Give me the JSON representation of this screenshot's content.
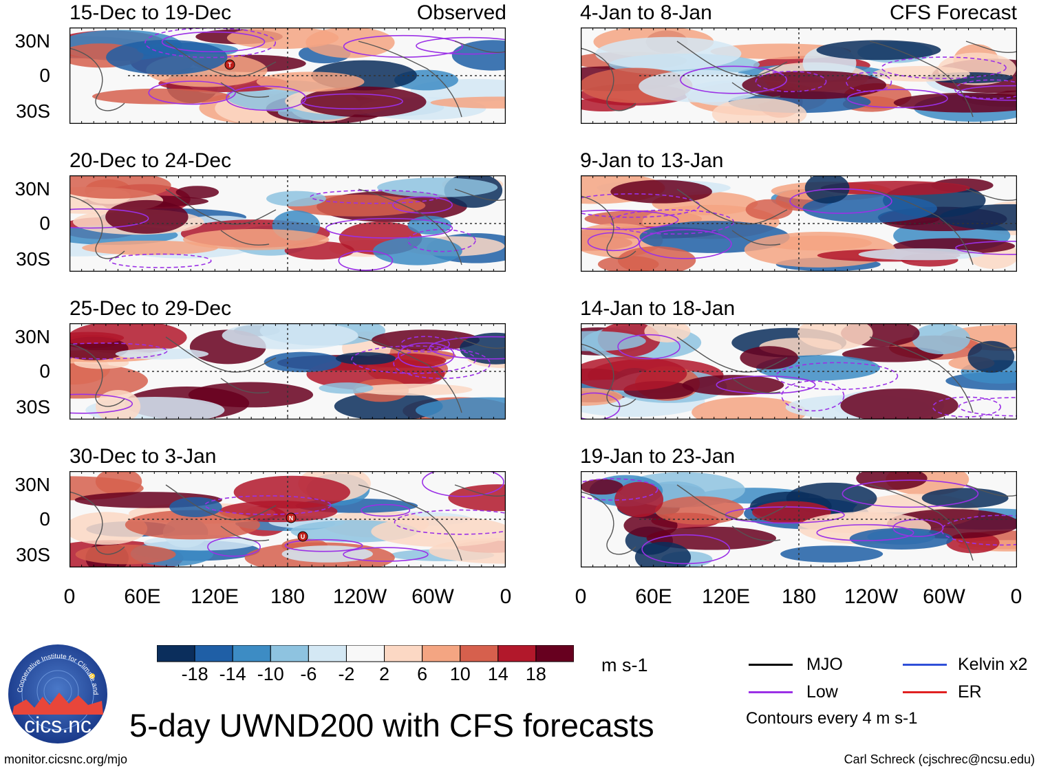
{
  "left_header_tag": "Observed",
  "right_header_tag": "CFS Forecast",
  "panels": [
    {
      "period": "15-Dec to 19-Dec",
      "column": "left",
      "markers": [
        {
          "label": "T"
        }
      ]
    },
    {
      "period": "20-Dec to 24-Dec",
      "column": "left",
      "markers": []
    },
    {
      "period": "25-Dec to 29-Dec",
      "column": "left",
      "markers": []
    },
    {
      "period": "30-Dec to 3-Jan",
      "column": "left",
      "markers": [
        {
          "label": "N"
        },
        {
          "label": "U"
        }
      ]
    },
    {
      "period": "4-Jan to 8-Jan",
      "column": "right",
      "markers": []
    },
    {
      "period": "9-Jan to 13-Jan",
      "column": "right",
      "markers": []
    },
    {
      "period": "14-Jan to 18-Jan",
      "column": "right",
      "markers": []
    },
    {
      "period": "19-Jan to 23-Jan",
      "column": "right",
      "markers": []
    }
  ],
  "y_ticks": [
    "30N",
    "0",
    "30S"
  ],
  "x_ticks": [
    "0",
    "60E",
    "120E",
    "180",
    "120W",
    "60W",
    "0"
  ],
  "colorbar": {
    "labels": [
      "-18",
      "-14",
      "-10",
      "-6",
      "-2",
      "2",
      "6",
      "10",
      "14",
      "18"
    ],
    "units": "m s-1",
    "colors": [
      "#0b2e5c",
      "#1f5fa6",
      "#3d8cc4",
      "#8ec3e0",
      "#d4e8f4",
      "#f8f8f8",
      "#fcd8c4",
      "#f4a582",
      "#d6604d",
      "#b2182b",
      "#67001f"
    ]
  },
  "legend": {
    "items": [
      {
        "label": "MJO",
        "color": "#000000"
      },
      {
        "label": "Kelvin x2",
        "color": "#2f4fd8"
      },
      {
        "label": "Low",
        "color": "#9b30e6"
      },
      {
        "label": "ER",
        "color": "#e02020"
      }
    ],
    "note": "Contours every 4 m s-1"
  },
  "main_title": "5-day UWND200 with CFS forecasts",
  "logo_text": "cics.nc",
  "logo_ring_text": "Cooperative Institute for Climate and Satellites",
  "footer_left": "monitor.cicsnc.org/mjo",
  "footer_right": "Carl Schreck (cjschrec@ncsu.edu)"
}
